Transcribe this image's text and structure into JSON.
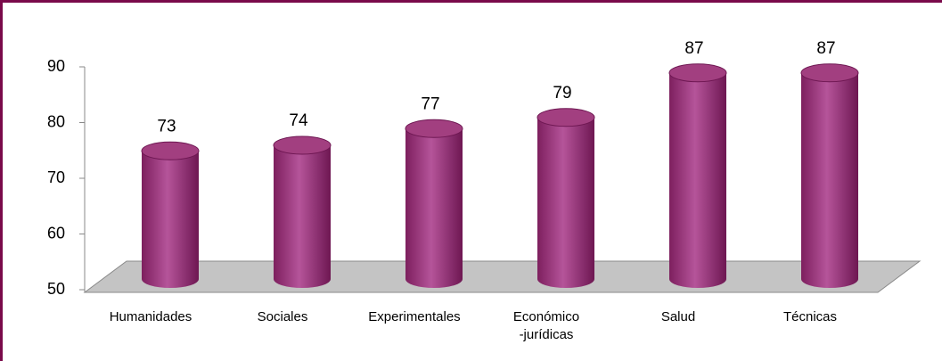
{
  "chart_data": {
    "type": "bar",
    "categories": [
      "Humanidades",
      "Sociales",
      "Experimentales",
      "Económico -jurídicas",
      "Salud",
      "Técnicas"
    ],
    "values": [
      73,
      74,
      77,
      79,
      87,
      87
    ],
    "color": "#a23f80",
    "ylim": [
      50,
      90
    ],
    "yticks": [
      50,
      60,
      70,
      80,
      90
    ]
  }
}
